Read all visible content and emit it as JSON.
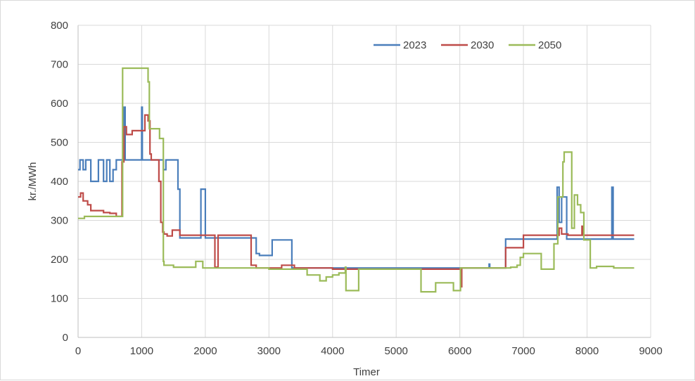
{
  "chart_data": {
    "type": "line",
    "title": "",
    "xlabel": "Timer",
    "ylabel": "kr./MWh",
    "xlim": [
      0,
      9000
    ],
    "ylim": [
      0,
      800
    ],
    "x_ticks": [
      0,
      1000,
      2000,
      3000,
      4000,
      5000,
      6000,
      7000,
      8000,
      9000
    ],
    "y_ticks": [
      0,
      100,
      200,
      300,
      400,
      500,
      600,
      700,
      800
    ],
    "grid": true,
    "legend_position": "top-right",
    "series": [
      {
        "name": "2023",
        "color": "#4a7ebb",
        "step": true,
        "points": [
          [
            0,
            430
          ],
          [
            30,
            455
          ],
          [
            80,
            430
          ],
          [
            120,
            455
          ],
          [
            160,
            455
          ],
          [
            200,
            400
          ],
          [
            300,
            400
          ],
          [
            320,
            455
          ],
          [
            400,
            400
          ],
          [
            450,
            455
          ],
          [
            500,
            400
          ],
          [
            550,
            430
          ],
          [
            600,
            455
          ],
          [
            700,
            455
          ],
          [
            720,
            590
          ],
          [
            740,
            455
          ],
          [
            1000,
            590
          ],
          [
            1010,
            455
          ],
          [
            1300,
            455
          ],
          [
            1340,
            430
          ],
          [
            1380,
            455
          ],
          [
            1560,
            455
          ],
          [
            1570,
            380
          ],
          [
            1600,
            255
          ],
          [
            1900,
            255
          ],
          [
            1930,
            380
          ],
          [
            2000,
            255
          ],
          [
            2700,
            255
          ],
          [
            2800,
            215
          ],
          [
            2850,
            210
          ],
          [
            3000,
            210
          ],
          [
            3050,
            250
          ],
          [
            3200,
            250
          ],
          [
            3350,
            250
          ],
          [
            3360,
            178
          ],
          [
            6450,
            178
          ],
          [
            6460,
            188
          ],
          [
            6470,
            178
          ],
          [
            6700,
            178
          ],
          [
            6720,
            252
          ],
          [
            7500,
            252
          ],
          [
            7530,
            385
          ],
          [
            7560,
            295
          ],
          [
            7600,
            360
          ],
          [
            7650,
            360
          ],
          [
            7680,
            252
          ],
          [
            8000,
            252
          ],
          [
            8380,
            252
          ],
          [
            8390,
            385
          ],
          [
            8410,
            252
          ],
          [
            8740,
            252
          ]
        ]
      },
      {
        "name": "2030",
        "color": "#be4b48",
        "step": true,
        "points": [
          [
            0,
            360
          ],
          [
            40,
            370
          ],
          [
            80,
            350
          ],
          [
            150,
            340
          ],
          [
            200,
            325
          ],
          [
            300,
            325
          ],
          [
            400,
            320
          ],
          [
            500,
            318
          ],
          [
            600,
            310
          ],
          [
            650,
            310
          ],
          [
            690,
            450
          ],
          [
            720,
            540
          ],
          [
            760,
            520
          ],
          [
            850,
            530
          ],
          [
            950,
            530
          ],
          [
            1050,
            570
          ],
          [
            1100,
            555
          ],
          [
            1130,
            470
          ],
          [
            1150,
            455
          ],
          [
            1270,
            400
          ],
          [
            1300,
            295
          ],
          [
            1330,
            270
          ],
          [
            1350,
            265
          ],
          [
            1400,
            260
          ],
          [
            1480,
            275
          ],
          [
            1600,
            262
          ],
          [
            2000,
            262
          ],
          [
            2130,
            262
          ],
          [
            2150,
            180
          ],
          [
            2200,
            262
          ],
          [
            2700,
            262
          ],
          [
            2720,
            185
          ],
          [
            2800,
            178
          ],
          [
            3000,
            178
          ],
          [
            3200,
            185
          ],
          [
            3400,
            178
          ],
          [
            3700,
            178
          ],
          [
            4000,
            175
          ],
          [
            5000,
            175
          ],
          [
            6000,
            175
          ],
          [
            6010,
            130
          ],
          [
            6030,
            178
          ],
          [
            6700,
            178
          ],
          [
            6720,
            230
          ],
          [
            6980,
            230
          ],
          [
            7000,
            262
          ],
          [
            7500,
            262
          ],
          [
            7560,
            280
          ],
          [
            7600,
            265
          ],
          [
            7700,
            262
          ],
          [
            7900,
            262
          ],
          [
            7920,
            285
          ],
          [
            7940,
            262
          ],
          [
            8740,
            262
          ]
        ]
      },
      {
        "name": "2050",
        "color": "#9bbb59",
        "step": true,
        "points": [
          [
            0,
            305
          ],
          [
            100,
            310
          ],
          [
            400,
            310
          ],
          [
            650,
            310
          ],
          [
            700,
            690
          ],
          [
            800,
            690
          ],
          [
            1050,
            690
          ],
          [
            1100,
            655
          ],
          [
            1120,
            535
          ],
          [
            1230,
            535
          ],
          [
            1280,
            510
          ],
          [
            1330,
            510
          ],
          [
            1340,
            195
          ],
          [
            1350,
            185
          ],
          [
            1500,
            180
          ],
          [
            1800,
            180
          ],
          [
            1850,
            195
          ],
          [
            1950,
            195
          ],
          [
            1960,
            178
          ],
          [
            2500,
            178
          ],
          [
            2600,
            178
          ],
          [
            2700,
            178
          ],
          [
            3000,
            175
          ],
          [
            3500,
            175
          ],
          [
            3600,
            160
          ],
          [
            3800,
            145
          ],
          [
            3900,
            155
          ],
          [
            4000,
            160
          ],
          [
            4100,
            165
          ],
          [
            4200,
            180
          ],
          [
            4210,
            120
          ],
          [
            4400,
            120
          ],
          [
            4410,
            175
          ],
          [
            5000,
            175
          ],
          [
            5380,
            175
          ],
          [
            5390,
            117
          ],
          [
            5600,
            117
          ],
          [
            5620,
            140
          ],
          [
            5800,
            140
          ],
          [
            5900,
            120
          ],
          [
            6000,
            120
          ],
          [
            6010,
            178
          ],
          [
            6700,
            178
          ],
          [
            6800,
            180
          ],
          [
            6900,
            185
          ],
          [
            6950,
            205
          ],
          [
            7000,
            215
          ],
          [
            7200,
            215
          ],
          [
            7280,
            175
          ],
          [
            7450,
            175
          ],
          [
            7480,
            240
          ],
          [
            7540,
            360
          ],
          [
            7620,
            450
          ],
          [
            7640,
            475
          ],
          [
            7750,
            475
          ],
          [
            7760,
            280
          ],
          [
            7800,
            365
          ],
          [
            7850,
            340
          ],
          [
            7900,
            320
          ],
          [
            7950,
            250
          ],
          [
            8000,
            250
          ],
          [
            8050,
            178
          ],
          [
            8100,
            178
          ],
          [
            8150,
            182
          ],
          [
            8400,
            182
          ],
          [
            8420,
            178
          ],
          [
            8740,
            178
          ]
        ]
      }
    ]
  }
}
